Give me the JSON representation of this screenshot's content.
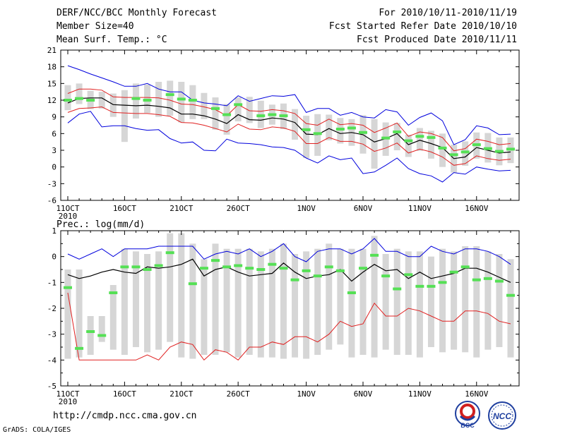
{
  "header": {
    "title": "DERF/NCC/BCC Monthly Forecast",
    "member_size": "Member Size=40",
    "variable": "Mean Surf. Temp.: °C",
    "period": "For 2010/10/11-2010/11/19",
    "started": "Fcst Started Refer Date 2010/10/10",
    "produced": "Fcst Produced Date 2010/11/11"
  },
  "footer": {
    "url": "http://cmdp.ncc.cma.gov.cn",
    "credit": "GrADS: COLA/IGES",
    "logo_left": "BCC",
    "logo_right": "NCC"
  },
  "colors": {
    "box": "#d6d6d6",
    "mean": "#000000",
    "observed": "#55e055",
    "spread": "#e02020",
    "extreme": "#0000dd"
  },
  "chart_data": [
    {
      "type": "box",
      "title": "Mean Surf. Temp.: °C",
      "days": 40,
      "x_tick_labels": [
        "11OCT",
        "16OCT",
        "21OCT",
        "26OCT",
        "1NOV",
        "6NOV",
        "11NOV",
        "16NOV"
      ],
      "x_tick_days": [
        0,
        5,
        10,
        15,
        21,
        26,
        31,
        36
      ],
      "year_label": "2010",
      "ylim": [
        -6,
        21
      ],
      "yticks": [
        -6,
        -3,
        0,
        3,
        6,
        9,
        12,
        15,
        18,
        21
      ],
      "series": [
        {
          "name": "ensemble_mean",
          "values": [
            11.5,
            12.3,
            12.4,
            12.4,
            11.2,
            11.1,
            11.0,
            11.1,
            10.9,
            10.6,
            9.5,
            9.5,
            9.2,
            8.6,
            7.8,
            9.4,
            8.5,
            8.4,
            8.8,
            8.6,
            8.0,
            5.9,
            5.8,
            6.9,
            6.0,
            6.2,
            5.8,
            4.5,
            5.1,
            6.0,
            4.0,
            4.8,
            4.2,
            3.5,
            1.5,
            1.8,
            3.5,
            3.0,
            2.5,
            2.7
          ]
        },
        {
          "name": "spread_upper",
          "values": [
            13.2,
            14.0,
            14.0,
            13.8,
            12.6,
            12.5,
            12.5,
            12.5,
            12.4,
            12.0,
            11.3,
            11.2,
            10.8,
            10.3,
            9.2,
            11.2,
            10.1,
            10.0,
            10.3,
            10.1,
            9.6,
            7.8,
            7.5,
            8.6,
            7.6,
            7.8,
            7.5,
            6.2,
            7.0,
            7.9,
            5.5,
            6.3,
            6.0,
            5.3,
            2.9,
            3.3,
            5.0,
            4.6,
            4.0,
            4.2
          ]
        },
        {
          "name": "spread_lower",
          "values": [
            9.8,
            10.5,
            10.6,
            10.8,
            9.8,
            9.7,
            9.6,
            9.6,
            9.4,
            9.1,
            8.0,
            7.9,
            7.5,
            6.9,
            6.3,
            7.7,
            6.8,
            6.7,
            7.2,
            7.0,
            6.4,
            4.2,
            4.2,
            5.3,
            4.6,
            4.6,
            4.1,
            2.8,
            3.4,
            4.3,
            2.5,
            3.2,
            2.7,
            1.8,
            0.3,
            0.6,
            2.0,
            1.5,
            1.2,
            1.4
          ]
        },
        {
          "name": "max",
          "values": [
            18.2,
            17.5,
            16.7,
            16.0,
            15.3,
            14.5,
            14.5,
            15.0,
            14.0,
            13.5,
            13.5,
            12.0,
            11.5,
            11.3,
            11.0,
            12.8,
            11.8,
            12.3,
            12.8,
            12.7,
            13.0,
            9.8,
            10.5,
            10.5,
            9.3,
            9.8,
            9.0,
            8.8,
            10.3,
            9.9,
            7.5,
            8.9,
            9.7,
            8.3,
            4.0,
            4.9,
            7.4,
            7.0,
            5.8,
            5.9
          ]
        },
        {
          "name": "min",
          "values": [
            7.9,
            9.5,
            10.0,
            7.2,
            7.4,
            7.4,
            6.9,
            6.6,
            6.7,
            5.1,
            4.3,
            4.5,
            3.0,
            2.9,
            5.0,
            4.3,
            4.2,
            4.0,
            3.6,
            3.5,
            3.0,
            1.6,
            0.7,
            2.0,
            1.3,
            1.6,
            -1.2,
            -0.9,
            0.3,
            1.6,
            -0.3,
            -1.2,
            -1.6,
            -2.7,
            -1.0,
            -1.3,
            0.0,
            -0.4,
            -0.7,
            -0.6
          ]
        },
        {
          "name": "observed",
          "values": [
            12.0,
            12.3,
            12.0,
            null,
            null,
            null,
            12.3,
            12.0,
            null,
            13.0,
            12.2,
            12.0,
            null,
            10.5,
            9.4,
            11.2,
            null,
            9.2,
            9.4,
            9.2,
            null,
            6.7,
            6.0,
            null,
            6.8,
            7.0,
            6.2,
            null,
            5.2,
            6.3,
            4.7,
            5.5,
            5.3,
            3.4,
            2.2,
            2.7,
            4.0,
            3.3,
            2.8,
            3.2
          ]
        }
      ],
      "boxes_low": [
        10.2,
        11.3,
        10.4,
        10.5,
        9.0,
        4.5,
        8.7,
        9.7,
        9.0,
        9.2,
        8.0,
        8.6,
        8.6,
        6.7,
        5.8,
        8.2,
        7.9,
        7.0,
        7.6,
        6.8,
        4.9,
        1.6,
        2.0,
        4.8,
        4.2,
        3.8,
        2.4,
        -0.3,
        2.0,
        3.0,
        1.8,
        2.9,
        1.5,
        0.0,
        -1.0,
        0.2,
        1.5,
        0.8,
        0.3,
        0.7
      ],
      "boxes_high": [
        14.7,
        15.0,
        13.7,
        13.5,
        13.2,
        13.8,
        15.0,
        14.8,
        15.3,
        15.5,
        15.3,
        14.7,
        13.3,
        12.5,
        11.3,
        12.5,
        12.6,
        11.9,
        11.2,
        11.4,
        10.4,
        9.2,
        9.5,
        9.4,
        8.8,
        8.6,
        9.3,
        8.6,
        8.0,
        7.9,
        5.8,
        7.0,
        6.5,
        6.0,
        4.0,
        4.6,
        6.2,
        6.1,
        5.3,
        5.3
      ]
    },
    {
      "type": "box",
      "title": "Prec.: log(mm/d)",
      "days": 40,
      "x_tick_labels": [
        "11OCT",
        "16OCT",
        "21OCT",
        "26OCT",
        "1NOV",
        "6NOV",
        "11NOV",
        "16NOV"
      ],
      "x_tick_days": [
        0,
        5,
        10,
        15,
        21,
        26,
        31,
        36
      ],
      "year_label": "2010",
      "ylim": [
        -5,
        1
      ],
      "yticks": [
        -5,
        -4,
        -3,
        -2,
        -1,
        0,
        1
      ],
      "series": [
        {
          "name": "ensemble_mean",
          "values": [
            -0.7,
            -0.85,
            -0.75,
            -0.6,
            -0.5,
            -0.6,
            -0.65,
            -0.4,
            -0.45,
            -0.4,
            -0.3,
            -0.1,
            -0.75,
            -0.5,
            -0.4,
            -0.6,
            -0.75,
            -0.7,
            -0.65,
            -0.25,
            -0.6,
            -0.85,
            -0.75,
            -0.7,
            -0.5,
            -0.95,
            -0.6,
            -0.3,
            -0.55,
            -0.5,
            -0.85,
            -0.6,
            -0.85,
            -0.75,
            -0.65,
            -0.45,
            -0.45,
            -0.6,
            -0.8,
            -1.0
          ]
        },
        {
          "name": "spread_lower",
          "values": [
            -1.4,
            -4.0,
            -4.0,
            -4.0,
            -4.0,
            -4.0,
            -4.0,
            -3.8,
            -4.0,
            -3.5,
            -3.3,
            -3.4,
            -4.0,
            -3.6,
            -3.7,
            -4.0,
            -3.5,
            -3.5,
            -3.3,
            -3.4,
            -3.1,
            -3.1,
            -3.3,
            -3.0,
            -2.5,
            -2.7,
            -2.6,
            -1.8,
            -2.3,
            -2.3,
            -2.0,
            -2.1,
            -2.3,
            -2.5,
            -2.5,
            -2.1,
            -2.1,
            -2.2,
            -2.5,
            -2.6
          ]
        },
        {
          "name": "max",
          "values": [
            0.1,
            -0.1,
            0.1,
            0.3,
            0.0,
            0.3,
            0.3,
            0.3,
            0.4,
            0.4,
            0.4,
            0.4,
            -0.1,
            0.1,
            0.2,
            0.1,
            0.3,
            0.0,
            0.2,
            0.5,
            0.0,
            -0.2,
            0.2,
            0.3,
            0.3,
            0.1,
            0.3,
            0.7,
            0.2,
            0.2,
            0.0,
            0.0,
            0.4,
            0.2,
            0.1,
            0.3,
            0.3,
            0.2,
            0.0,
            -0.3
          ]
        },
        {
          "name": "observed",
          "values": [
            -1.2,
            -3.55,
            -2.9,
            -3.05,
            -1.4,
            -0.4,
            -0.4,
            -0.5,
            -0.35,
            0.15,
            null,
            -1.05,
            -0.45,
            -0.15,
            -0.4,
            -0.35,
            -0.45,
            -0.5,
            -0.3,
            -0.45,
            -0.9,
            -0.55,
            -0.75,
            -0.4,
            -0.55,
            -1.4,
            -0.45,
            0.05,
            -0.75,
            -1.25,
            -0.7,
            -1.15,
            -1.15,
            -1.0,
            -0.6,
            -0.4,
            -0.9,
            -0.85,
            -0.95,
            -1.5
          ]
        }
      ],
      "boxes_low": [
        -3.95,
        -3.9,
        -3.8,
        -3.3,
        -3.6,
        -3.8,
        -3.5,
        -3.7,
        -3.6,
        -3.3,
        -3.9,
        -3.95,
        -3.8,
        -3.8,
        -3.7,
        -3.9,
        -3.8,
        -3.9,
        -3.9,
        -3.95,
        -3.9,
        -3.95,
        -3.8,
        -3.6,
        -3.4,
        -3.9,
        -3.8,
        -3.9,
        -3.6,
        -3.8,
        -3.8,
        -3.9,
        -3.5,
        -3.7,
        -3.6,
        -3.7,
        -3.9,
        -3.6,
        -3.5,
        -3.9
      ],
      "boxes_high": [
        -0.5,
        -0.5,
        -2.3,
        -2.3,
        -1.1,
        0.3,
        0.2,
        0.1,
        0.2,
        0.9,
        0.9,
        0.5,
        -0.1,
        0.5,
        0.3,
        0.3,
        0.3,
        0.2,
        0.3,
        0.5,
        0.1,
        0.2,
        0.3,
        0.5,
        0.3,
        0.3,
        0.3,
        0.8,
        0.1,
        0.3,
        0.2,
        0.2,
        0.0,
        0.3,
        0.2,
        0.4,
        0.4,
        0.2,
        0.1,
        -0.1
      ]
    }
  ]
}
